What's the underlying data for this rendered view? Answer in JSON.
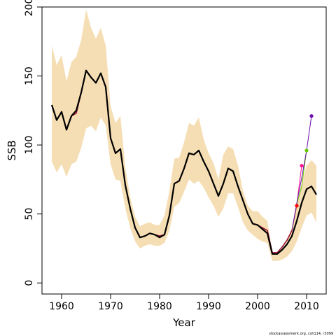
{
  "chart_data": {
    "type": "line",
    "xlabel": "Year",
    "ylabel": "SSB",
    "xlim": [
      1956,
      2014
    ],
    "ylim": [
      -8,
      200
    ],
    "x_ticks": [
      1960,
      1970,
      1980,
      1990,
      2000,
      2010
    ],
    "y_ticks": [
      0,
      50,
      100,
      150,
      200
    ],
    "credit": "stockassessment.org, csh114, r3099",
    "colors": {
      "band": "#f5deb3",
      "estimate": "#000000",
      "retro_base": "#9b1030",
      "retro_tip_1": "#ff0000",
      "retro_tip_2": "#ff1493",
      "retro_tip_3": "#66cc00",
      "retro_tip_4": "#6a0dad"
    },
    "band": {
      "years": [
        1958,
        1959,
        1960,
        1961,
        1962,
        1963,
        1964,
        1965,
        1966,
        1967,
        1968,
        1969,
        1970,
        1971,
        1972,
        1973,
        1974,
        1975,
        1976,
        1977,
        1978,
        1979,
        1980,
        1981,
        1982,
        1983,
        1984,
        1985,
        1986,
        1987,
        1988,
        1989,
        1990,
        1991,
        1992,
        1993,
        1994,
        1995,
        1996,
        1997,
        1998,
        1999,
        2000,
        2001,
        2002,
        2003,
        2004,
        2005,
        2006,
        2007,
        2008,
        2009,
        2010,
        2011,
        2012
      ],
      "upper": [
        172,
        158,
        165,
        146,
        160,
        164,
        176,
        198,
        185,
        177,
        185,
        172,
        128,
        116,
        121,
        84,
        62,
        48,
        41,
        43,
        44,
        42,
        42,
        49,
        67,
        90,
        91,
        102,
        116,
        114,
        120,
        104,
        94,
        87,
        75,
        93,
        99,
        97,
        85,
        67,
        56,
        52,
        52,
        48,
        45,
        22,
        22,
        25,
        30,
        40,
        56,
        72,
        85,
        89,
        85
      ],
      "lower": [
        88,
        80,
        86,
        77,
        86,
        88,
        98,
        112,
        114,
        110,
        120,
        114,
        86,
        75,
        74,
        54,
        40,
        30,
        25,
        27,
        28,
        27,
        27,
        29,
        38,
        55,
        58,
        66,
        75,
        72,
        74,
        69,
        62,
        56,
        48,
        54,
        65,
        65,
        55,
        44,
        38,
        35,
        32,
        30,
        29,
        16,
        16,
        17,
        19,
        23,
        30,
        40,
        49,
        51,
        44
      ]
    },
    "series": [
      {
        "years": [
          1958,
          1959,
          1960,
          1961,
          1962,
          1963,
          1964,
          1965,
          1966,
          1967,
          1968,
          1969,
          1970,
          1971,
          1972,
          1973,
          1974,
          1975,
          1976,
          1977,
          1978,
          1979,
          1980,
          1981,
          1982,
          1983,
          1984,
          1985,
          1986,
          1987,
          1988,
          1989,
          1990,
          1991,
          1992,
          1993,
          1994,
          1995,
          1996,
          1997,
          1998,
          1999,
          2000,
          2001,
          2002,
          2003,
          2004,
          2005,
          2006,
          2007,
          2008,
          2009,
          2010,
          2011,
          2012
        ],
        "values": [
          129,
          118,
          124,
          111,
          121,
          125,
          138,
          154,
          149,
          145,
          152,
          142,
          105,
          94,
          97,
          71,
          54,
          40,
          33,
          34,
          36,
          35,
          33,
          35,
          49,
          72,
          74,
          83,
          94,
          93,
          96,
          88,
          81,
          72,
          63,
          72,
          83,
          81,
          70,
          60,
          50,
          43,
          42,
          39,
          36,
          21,
          21,
          24,
          28,
          34,
          45,
          58,
          68,
          70,
          64
        ]
      },
      {
        "years": [
          1958,
          1959,
          1960,
          1961,
          1962,
          1963,
          1964,
          1965,
          1966,
          1967,
          1968,
          1969,
          1970,
          1971,
          1972,
          1973,
          1974,
          1975,
          1976,
          1977,
          1978,
          1979,
          1980,
          1981,
          1982,
          1983,
          1984,
          1985,
          1986,
          1987,
          1988,
          1989,
          1990,
          1991,
          1992,
          1993,
          1994,
          1995,
          1996,
          1997,
          1998,
          1999,
          2000,
          2001,
          2002,
          2003,
          2004,
          2005,
          2006,
          2007
        ],
        "values": [
          129,
          118,
          124,
          111,
          121,
          123,
          138,
          154,
          149,
          145,
          152,
          142,
          105,
          94,
          97,
          71,
          54,
          40,
          33,
          34,
          36,
          35,
          34,
          35,
          49,
          72,
          74,
          83,
          94,
          93,
          96,
          88,
          81,
          72,
          63,
          72,
          83,
          81,
          70,
          60,
          50,
          43,
          42,
          40,
          38,
          22,
          22,
          26,
          31,
          38
        ]
      }
    ],
    "retro_tips": [
      {
        "years": [
          2007,
          2008
        ],
        "values": [
          38,
          56
        ]
      },
      {
        "years": [
          2007,
          2008,
          2009
        ],
        "values": [
          38,
          57,
          85
        ]
      },
      {
        "years": [
          2007,
          2008,
          2009,
          2010
        ],
        "values": [
          38,
          57,
          70,
          96
        ]
      },
      {
        "years": [
          2007,
          2008,
          2009,
          2010,
          2011
        ],
        "values": [
          38,
          58,
          76,
          96,
          121
        ]
      }
    ]
  }
}
